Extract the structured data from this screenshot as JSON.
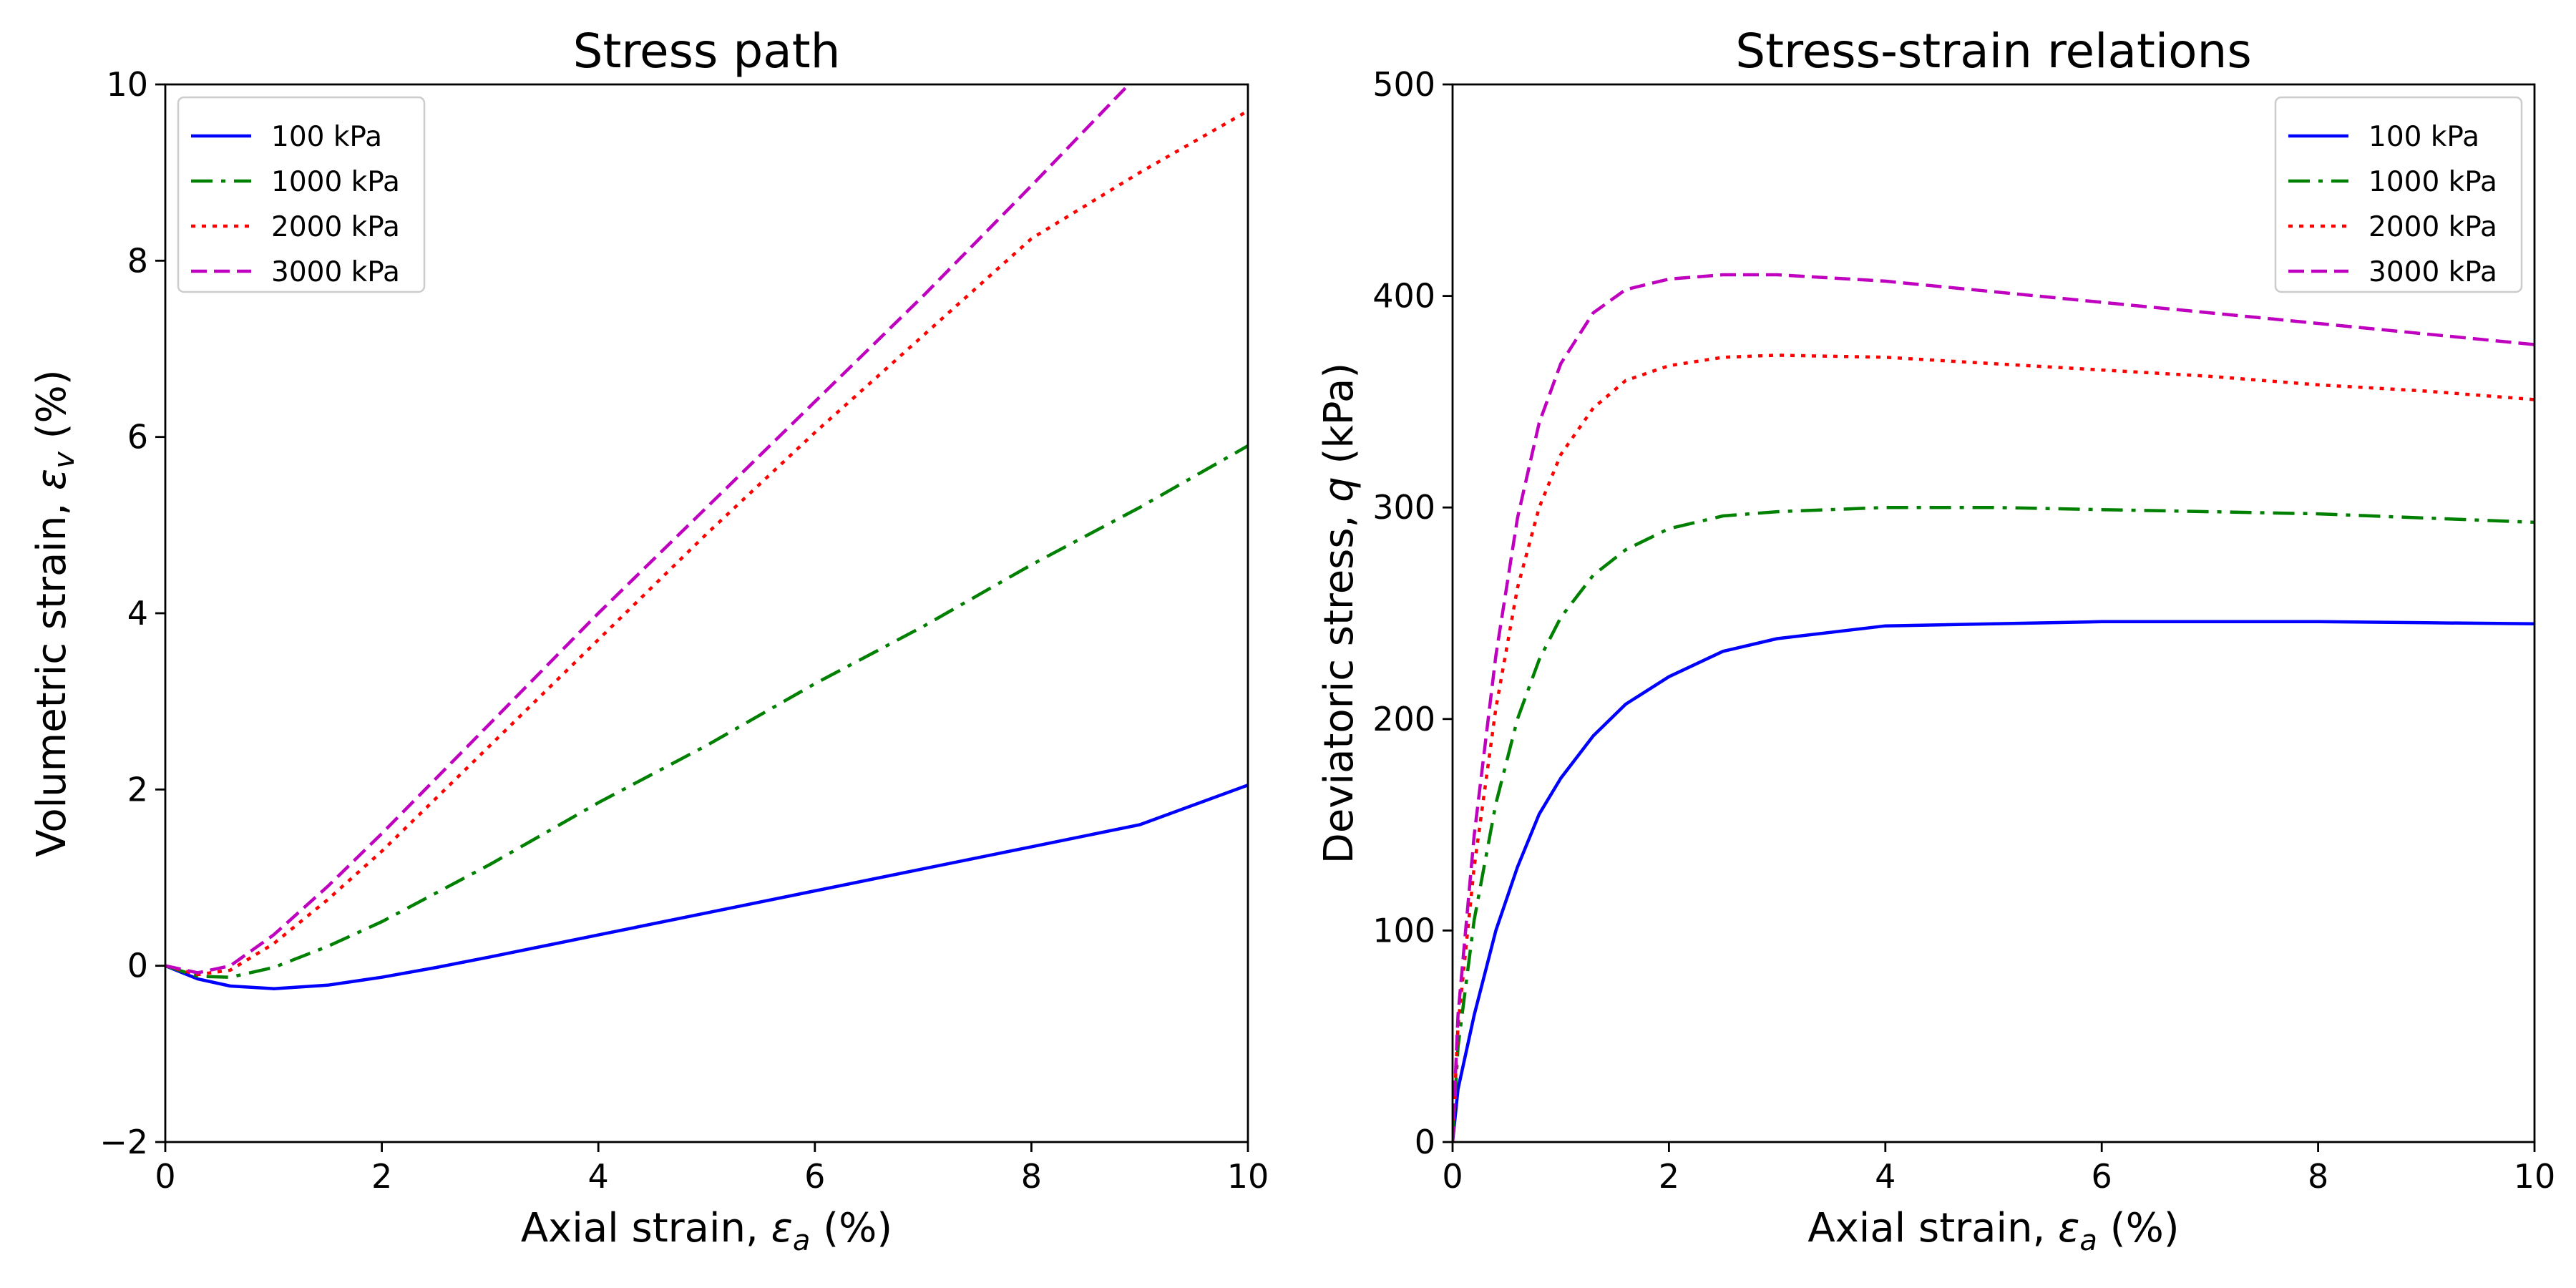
{
  "chart_data": [
    {
      "type": "line",
      "title": "Stress path",
      "xlabel": "Axial strain, ",
      "xlabel_symbol": "ε",
      "xlabel_sub": "a",
      "xlabel_unit": " (%)",
      "ylabel": "Volumetric strain, ",
      "ylabel_symbol": "ε",
      "ylabel_sub": "v",
      "ylabel_unit": " (%)",
      "xlim": [
        0,
        10
      ],
      "ylim": [
        -2,
        10
      ],
      "xticks": [
        0,
        2,
        4,
        6,
        8,
        10
      ],
      "yticks": [
        -2,
        0,
        2,
        4,
        6,
        8,
        10
      ],
      "xtick_labels": [
        "0",
        "2",
        "4",
        "6",
        "8",
        "10"
      ],
      "ytick_labels": [
        "−2",
        "0",
        "2",
        "4",
        "6",
        "8",
        "10"
      ],
      "grid": false,
      "legend_position": "top-left",
      "series": [
        {
          "name": "100 kPa",
          "color": "#0000ff",
          "dash": "solid",
          "x": [
            0,
            0.3,
            0.6,
            1.0,
            1.5,
            2.0,
            2.5,
            3.0,
            4.0,
            5.0,
            6.0,
            7.0,
            8.0,
            9.0,
            10.0
          ],
          "y": [
            0,
            -0.15,
            -0.23,
            -0.26,
            -0.22,
            -0.13,
            -0.02,
            0.1,
            0.35,
            0.6,
            0.85,
            1.1,
            1.35,
            1.6,
            2.05
          ]
        },
        {
          "name": "1000 kPa",
          "color": "#008000",
          "dash": "dashdot",
          "x": [
            0,
            0.3,
            0.6,
            1.0,
            1.5,
            2.0,
            3.0,
            4.0,
            5.0,
            6.0,
            7.0,
            8.0,
            9.0,
            10.0
          ],
          "y": [
            0,
            -0.12,
            -0.13,
            -0.02,
            0.22,
            0.5,
            1.15,
            1.85,
            2.5,
            3.2,
            3.85,
            4.55,
            5.2,
            5.9
          ]
        },
        {
          "name": "2000 kPa",
          "color": "#ff0000",
          "dash": "dotted",
          "x": [
            0,
            0.3,
            0.6,
            1.0,
            1.5,
            2.0,
            3.0,
            4.0,
            5.0,
            6.0,
            7.0,
            8.0,
            9.0,
            10.0
          ],
          "y": [
            0,
            -0.1,
            -0.05,
            0.25,
            0.75,
            1.3,
            2.5,
            3.7,
            4.9,
            6.05,
            7.15,
            8.25,
            9.0,
            9.7
          ]
        },
        {
          "name": "3000 kPa",
          "color": "#bf00bf",
          "dash": "dashed",
          "x": [
            0,
            0.3,
            0.6,
            1.0,
            1.5,
            2.0,
            3.0,
            4.0,
            5.0,
            6.0,
            7.0,
            8.0,
            8.9
          ],
          "y": [
            0,
            -0.08,
            0.0,
            0.35,
            0.9,
            1.5,
            2.75,
            4.0,
            5.2,
            6.4,
            7.6,
            8.85,
            10.0
          ]
        }
      ]
    },
    {
      "type": "line",
      "title": "Stress-strain relations",
      "xlabel": "Axial strain, ",
      "xlabel_symbol": "ε",
      "xlabel_sub": "a",
      "xlabel_unit": " (%)",
      "ylabel": "Deviatoric stress, ",
      "ylabel_symbol": "q",
      "ylabel_sub": "",
      "ylabel_unit": " (kPa)",
      "xlim": [
        0,
        10
      ],
      "ylim": [
        0,
        500
      ],
      "xticks": [
        0,
        2,
        4,
        6,
        8,
        10
      ],
      "yticks": [
        0,
        100,
        200,
        300,
        400,
        500
      ],
      "xtick_labels": [
        "0",
        "2",
        "4",
        "6",
        "8",
        "10"
      ],
      "ytick_labels": [
        "0",
        "100",
        "200",
        "300",
        "400",
        "500"
      ],
      "grid": false,
      "legend_position": "top-right",
      "series": [
        {
          "name": "100 kPa",
          "color": "#0000ff",
          "dash": "solid",
          "x": [
            0,
            0.05,
            0.2,
            0.4,
            0.6,
            0.8,
            1.0,
            1.3,
            1.6,
            2.0,
            2.5,
            3.0,
            4.0,
            5.0,
            6.0,
            7.0,
            8.0,
            9.0,
            10.0
          ],
          "y": [
            0,
            25,
            60,
            100,
            130,
            155,
            172,
            192,
            207,
            220,
            232,
            238,
            244,
            245,
            246,
            246,
            246,
            245.5,
            245
          ]
        },
        {
          "name": "1000 kPa",
          "color": "#008000",
          "dash": "dashdot",
          "x": [
            0,
            0.05,
            0.2,
            0.4,
            0.6,
            0.8,
            1.0,
            1.3,
            1.6,
            2.0,
            2.5,
            3.0,
            4.0,
            5.0,
            6.0,
            7.0,
            8.0,
            9.0,
            10.0
          ],
          "y": [
            0,
            45,
            105,
            160,
            200,
            228,
            248,
            268,
            280,
            290,
            296,
            298,
            300,
            300,
            299,
            298,
            297,
            295,
            293
          ]
        },
        {
          "name": "2000 kPa",
          "color": "#ff0000",
          "dash": "dotted",
          "x": [
            0,
            0.05,
            0.2,
            0.4,
            0.6,
            0.8,
            1.0,
            1.3,
            1.6,
            2.0,
            2.5,
            3.0,
            4.0,
            5.0,
            6.0,
            7.0,
            8.0,
            9.0,
            10.0
          ],
          "y": [
            0,
            55,
            130,
            205,
            262,
            300,
            325,
            347,
            360,
            367,
            371,
            372,
            371,
            368,
            365,
            362,
            358,
            355,
            351
          ]
        },
        {
          "name": "3000 kPa",
          "color": "#bf00bf",
          "dash": "dashed",
          "x": [
            0,
            0.05,
            0.2,
            0.4,
            0.6,
            0.8,
            1.0,
            1.3,
            1.6,
            2.0,
            2.5,
            3.0,
            4.0,
            5.0,
            6.0,
            7.0,
            8.0,
            9.0,
            10.0
          ],
          "y": [
            0,
            60,
            145,
            230,
            295,
            340,
            368,
            392,
            403,
            408,
            410,
            410,
            407,
            402,
            397,
            392,
            387,
            382,
            377
          ]
        }
      ]
    }
  ]
}
